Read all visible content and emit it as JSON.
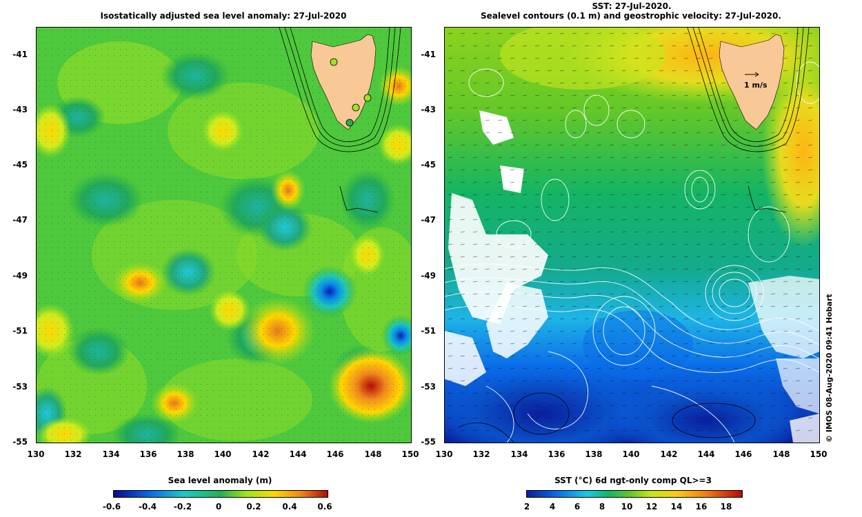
{
  "left_panel": {
    "title": "Isostatically adjusted sea level anomaly: 27-Jul-2020",
    "colorbar_label": "Sea level anomaly (m)",
    "colorbar_ticks": [
      "-0.6",
      "-0.4",
      "-0.2",
      "0",
      "0.2",
      "0.4",
      "0.6"
    ],
    "colors": [
      "#0a0a8c",
      "#0a6be8",
      "#20c8c8",
      "#22b14c",
      "#9be61e",
      "#ffd700",
      "#f08c1e",
      "#b40a0a"
    ]
  },
  "right_panel": {
    "title_line1": "SST: 27-Jul-2020.",
    "title_line2": "Sealevel contours (0.1 m) and geostrophic velocity: 27-Jul-2020.",
    "colorbar_label": "SST (°C) 6d ngt-only comp QL>=3",
    "colorbar_ticks": [
      "2",
      "4",
      "6",
      "8",
      "10",
      "12",
      "14",
      "16",
      "18"
    ],
    "velocity_scale_label": "1 m/s",
    "colors": [
      "#0a1f9c",
      "#0a6be8",
      "#1ec8e6",
      "#14b464",
      "#64c828",
      "#c8e61e",
      "#ffc814",
      "#f07814",
      "#b40a0a"
    ]
  },
  "axes": {
    "y_ticks": [
      "-41",
      "-43",
      "-45",
      "-47",
      "-49",
      "-51",
      "-53",
      "-55"
    ],
    "x_ticks": [
      "130",
      "132",
      "134",
      "136",
      "138",
      "140",
      "142",
      "144",
      "146",
      "148",
      "150"
    ]
  },
  "credit": "© IMOS 08-Aug-2020 09:41 Hobart",
  "land_color": "#f8c896"
}
